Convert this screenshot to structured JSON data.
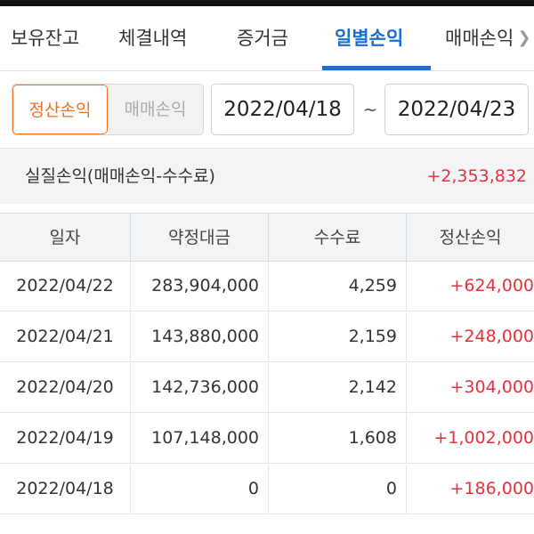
{
  "tabs": [
    {
      "label": "보유잔고",
      "active": false
    },
    {
      "label": "체결내역",
      "active": false
    },
    {
      "label": "증거금",
      "active": false
    },
    {
      "label": "일별손익",
      "active": true
    },
    {
      "label": "매매손익",
      "active": false
    }
  ],
  "filter": {
    "seg_settle": "정산손익",
    "seg_trade": "매매손익",
    "date_from": "2022/04/18",
    "date_separator": "~",
    "date_to": "2022/04/23"
  },
  "summary": {
    "label": "실질손익(매매손익-수수료)",
    "value": "+2,353,832"
  },
  "table": {
    "headers": [
      "일자",
      "약정대금",
      "수수료",
      "정산손익"
    ],
    "rows": [
      {
        "date": "2022/04/22",
        "amount": "283,904,000",
        "fee": "4,259",
        "pl": "+624,000"
      },
      {
        "date": "2022/04/21",
        "amount": "143,880,000",
        "fee": "2,159",
        "pl": "+248,000"
      },
      {
        "date": "2022/04/20",
        "amount": "142,736,000",
        "fee": "2,142",
        "pl": "+304,000"
      },
      {
        "date": "2022/04/19",
        "amount": "107,148,000",
        "fee": "1,608",
        "pl": "+1,002,000"
      },
      {
        "date": "2022/04/18",
        "amount": "0",
        "fee": "0",
        "pl": "+186,000"
      }
    ]
  },
  "colors": {
    "accent_blue": "#1a6fd6",
    "accent_orange": "#f36f21",
    "profit_red": "#e8313a"
  }
}
